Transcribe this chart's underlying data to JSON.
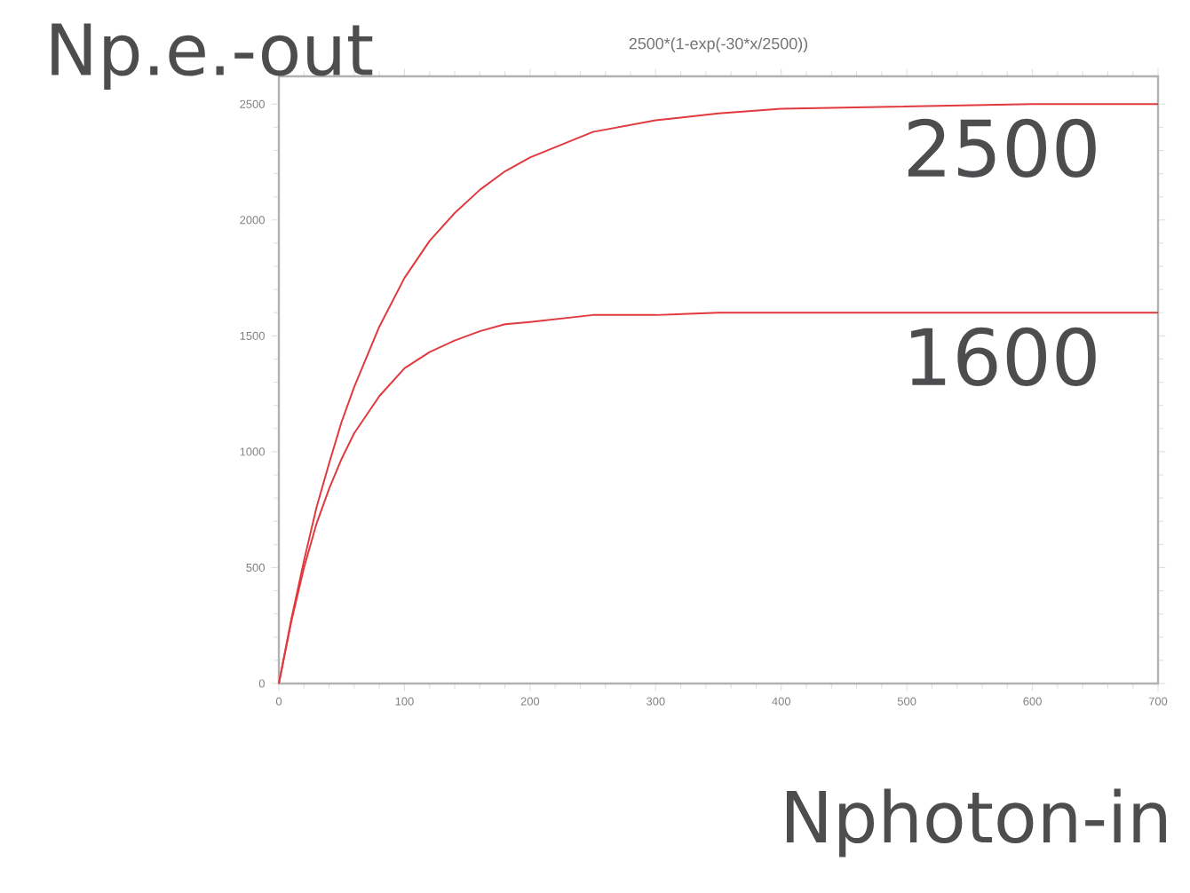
{
  "chart_data": {
    "type": "line",
    "title": "2500*(1-exp(-30*x/2500))",
    "xlabel": "Nphoton-in",
    "ylabel": "Np.e.-out",
    "x": [
      0,
      10,
      20,
      30,
      40,
      50,
      60,
      80,
      100,
      120,
      140,
      160,
      180,
      200,
      250,
      300,
      350,
      400,
      500,
      600,
      700
    ],
    "series": [
      {
        "name": "2500",
        "color": "#e0393e",
        "values": [
          0,
          280,
          530,
          760,
          950,
          1130,
          1280,
          1540,
          1750,
          1910,
          2030,
          2130,
          2210,
          2270,
          2380,
          2430,
          2460,
          2480,
          2490,
          2500,
          2500
        ]
      },
      {
        "name": "1600",
        "color": "#e0393e",
        "values": [
          0,
          270,
          500,
          690,
          840,
          970,
          1080,
          1240,
          1360,
          1430,
          1480,
          1520,
          1550,
          1560,
          1590,
          1590,
          1600,
          1600,
          1600,
          1600,
          1600
        ]
      }
    ],
    "xlim": [
      0,
      700
    ],
    "ylim": [
      0,
      2620
    ],
    "xticks": [
      0,
      100,
      200,
      300,
      400,
      500,
      600,
      700
    ],
    "yticks": [
      0,
      500,
      1000,
      1500,
      2000,
      2500
    ]
  }
}
